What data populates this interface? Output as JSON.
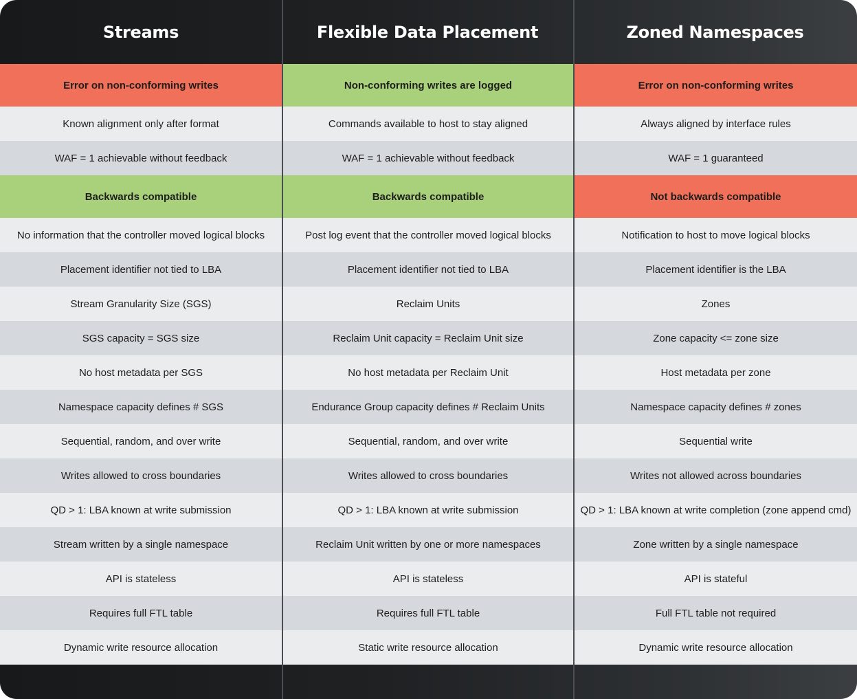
{
  "headers": [
    "Streams",
    "Flexible Data Placement",
    "Zoned Namespaces"
  ],
  "rows": [
    {
      "kind": "highlight",
      "cells": [
        {
          "text": "Error on non-conforming writes",
          "color": "red"
        },
        {
          "text": "Non-conforming writes are logged",
          "color": "green"
        },
        {
          "text": "Error on non-conforming writes",
          "color": "red"
        }
      ]
    },
    {
      "kind": "plain",
      "shade": "light",
      "cells": [
        {
          "text": "Known alignment only after format"
        },
        {
          "text": "Commands available to host to stay aligned"
        },
        {
          "text": "Always aligned by interface rules"
        }
      ]
    },
    {
      "kind": "plain",
      "shade": "dark",
      "cells": [
        {
          "text": "WAF = 1 achievable without feedback"
        },
        {
          "text": "WAF = 1 achievable without feedback"
        },
        {
          "text": "WAF = 1 guaranteed"
        }
      ]
    },
    {
      "kind": "highlight",
      "cells": [
        {
          "text": "Backwards compatible",
          "color": "green"
        },
        {
          "text": "Backwards compatible",
          "color": "green"
        },
        {
          "text": "Not backwards compatible",
          "color": "red"
        }
      ]
    },
    {
      "kind": "plain",
      "shade": "light",
      "cells": [
        {
          "text": "No information that the controller moved logical blocks"
        },
        {
          "text": "Post log event that the controller moved logical blocks"
        },
        {
          "text": "Notification to host to move logical blocks"
        }
      ]
    },
    {
      "kind": "plain",
      "shade": "dark",
      "cells": [
        {
          "text": "Placement identifier not tied to LBA"
        },
        {
          "text": "Placement identifier not tied to LBA"
        },
        {
          "text": "Placement identifier is the LBA"
        }
      ]
    },
    {
      "kind": "plain",
      "shade": "light",
      "cells": [
        {
          "text": "Stream Granularity Size (SGS)"
        },
        {
          "text": "Reclaim Units"
        },
        {
          "text": "Zones"
        }
      ]
    },
    {
      "kind": "plain",
      "shade": "dark",
      "cells": [
        {
          "text": "SGS capacity = SGS size"
        },
        {
          "text": "Reclaim Unit capacity = Reclaim Unit size"
        },
        {
          "text": "Zone capacity <= zone size"
        }
      ]
    },
    {
      "kind": "plain",
      "shade": "light",
      "cells": [
        {
          "text": "No host metadata per SGS"
        },
        {
          "text": "No host metadata per Reclaim Unit"
        },
        {
          "text": "Host metadata per zone"
        }
      ]
    },
    {
      "kind": "plain",
      "shade": "dark",
      "cells": [
        {
          "text": "Namespace capacity defines # SGS"
        },
        {
          "text": "Endurance Group capacity defines # Reclaim Units"
        },
        {
          "text": "Namespace capacity defines # zones"
        }
      ]
    },
    {
      "kind": "plain",
      "shade": "light",
      "cells": [
        {
          "text": "Sequential, random, and over write"
        },
        {
          "text": "Sequential, random, and over write"
        },
        {
          "text": "Sequential write"
        }
      ]
    },
    {
      "kind": "plain",
      "shade": "dark",
      "cells": [
        {
          "text": "Writes allowed to cross boundaries"
        },
        {
          "text": "Writes allowed to cross boundaries"
        },
        {
          "text": "Writes not allowed across boundaries"
        }
      ]
    },
    {
      "kind": "plain",
      "shade": "light",
      "cells": [
        {
          "text": "QD > 1: LBA known at write submission"
        },
        {
          "text": "QD > 1: LBA known at write submission"
        },
        {
          "text": "QD > 1: LBA known at write completion (zone append cmd)"
        }
      ]
    },
    {
      "kind": "plain",
      "shade": "dark",
      "cells": [
        {
          "text": "Stream written by a single namespace"
        },
        {
          "text": "Reclaim Unit written by one or more namespaces"
        },
        {
          "text": "Zone written by a single namespace"
        }
      ]
    },
    {
      "kind": "plain",
      "shade": "light",
      "cells": [
        {
          "text": "API is stateless"
        },
        {
          "text": "API is stateless"
        },
        {
          "text": "API is stateful"
        }
      ]
    },
    {
      "kind": "plain",
      "shade": "dark",
      "cells": [
        {
          "text": "Requires full FTL table"
        },
        {
          "text": "Requires full FTL table"
        },
        {
          "text": "Full FTL table not required"
        }
      ]
    },
    {
      "kind": "plain",
      "shade": "light",
      "cells": [
        {
          "text": "Dynamic write resource allocation"
        },
        {
          "text": "Static write resource allocation"
        },
        {
          "text": "Dynamic write resource allocation"
        }
      ]
    }
  ]
}
